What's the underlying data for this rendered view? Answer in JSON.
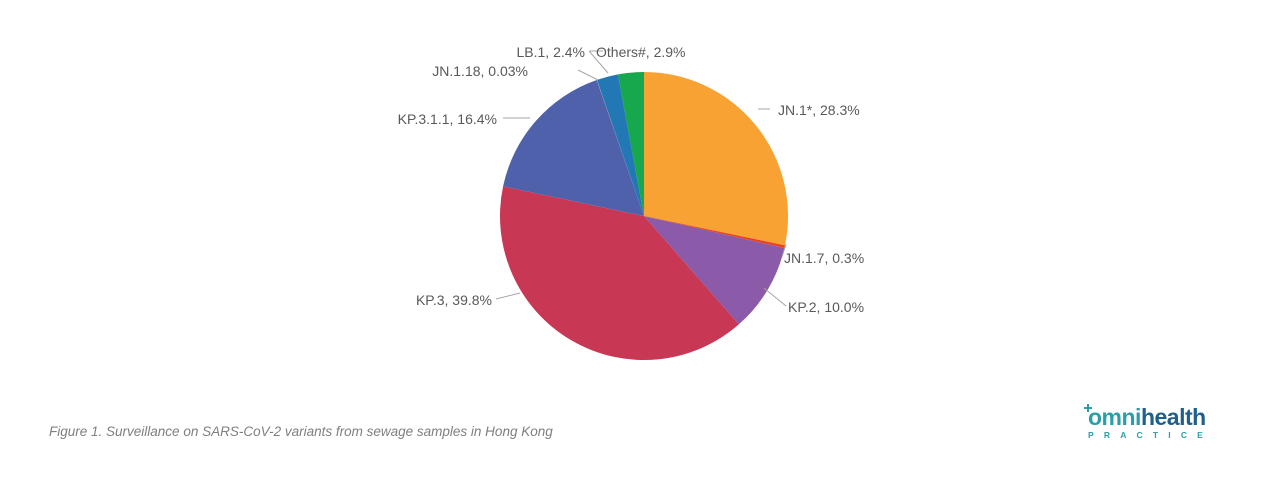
{
  "chart_data": {
    "type": "pie",
    "slices": [
      {
        "label": "JN.1*, 28.3%",
        "name": "JN.1*",
        "value": 28.3,
        "color": "#f8a233",
        "side": "right"
      },
      {
        "label": "JN.1.7, 0.3%",
        "name": "JN.1.7",
        "value": 0.3,
        "color": "#e8421f",
        "side": "right"
      },
      {
        "label": "KP.2, 10.0%",
        "name": "KP.2",
        "value": 10.0,
        "color": "#8b5aa8",
        "side": "right"
      },
      {
        "label": "KP.3, 39.8%",
        "name": "KP.3",
        "value": 39.8,
        "color": "#c83855",
        "side": "left"
      },
      {
        "label": "KP.3.1.1, 16.4%",
        "name": "KP.3.1.1",
        "value": 16.4,
        "color": "#5061ab",
        "side": "left"
      },
      {
        "label": "JN.1.18, 0.03%",
        "name": "JN.1.18",
        "value": 0.03,
        "color": "#e8817a",
        "side": "left"
      },
      {
        "label": "LB.1, 2.4%",
        "name": "LB.1",
        "value": 2.4,
        "color": "#2278b5",
        "side": "left"
      },
      {
        "label": "Others#, 2.9%",
        "name": "Others#",
        "value": 2.9,
        "color": "#17a84e",
        "side": "left"
      }
    ],
    "start_angle": "12 o'clock",
    "direction": "clockwise",
    "legend": "none",
    "data_labels": "outside with leader lines"
  },
  "caption": "Figure 1. Surveillance on SARS-CoV-2 variants from sewage samples in Hong Kong",
  "logo": {
    "word_omni": "omni",
    "word_health": "health",
    "subtitle": "PRACTICE"
  }
}
